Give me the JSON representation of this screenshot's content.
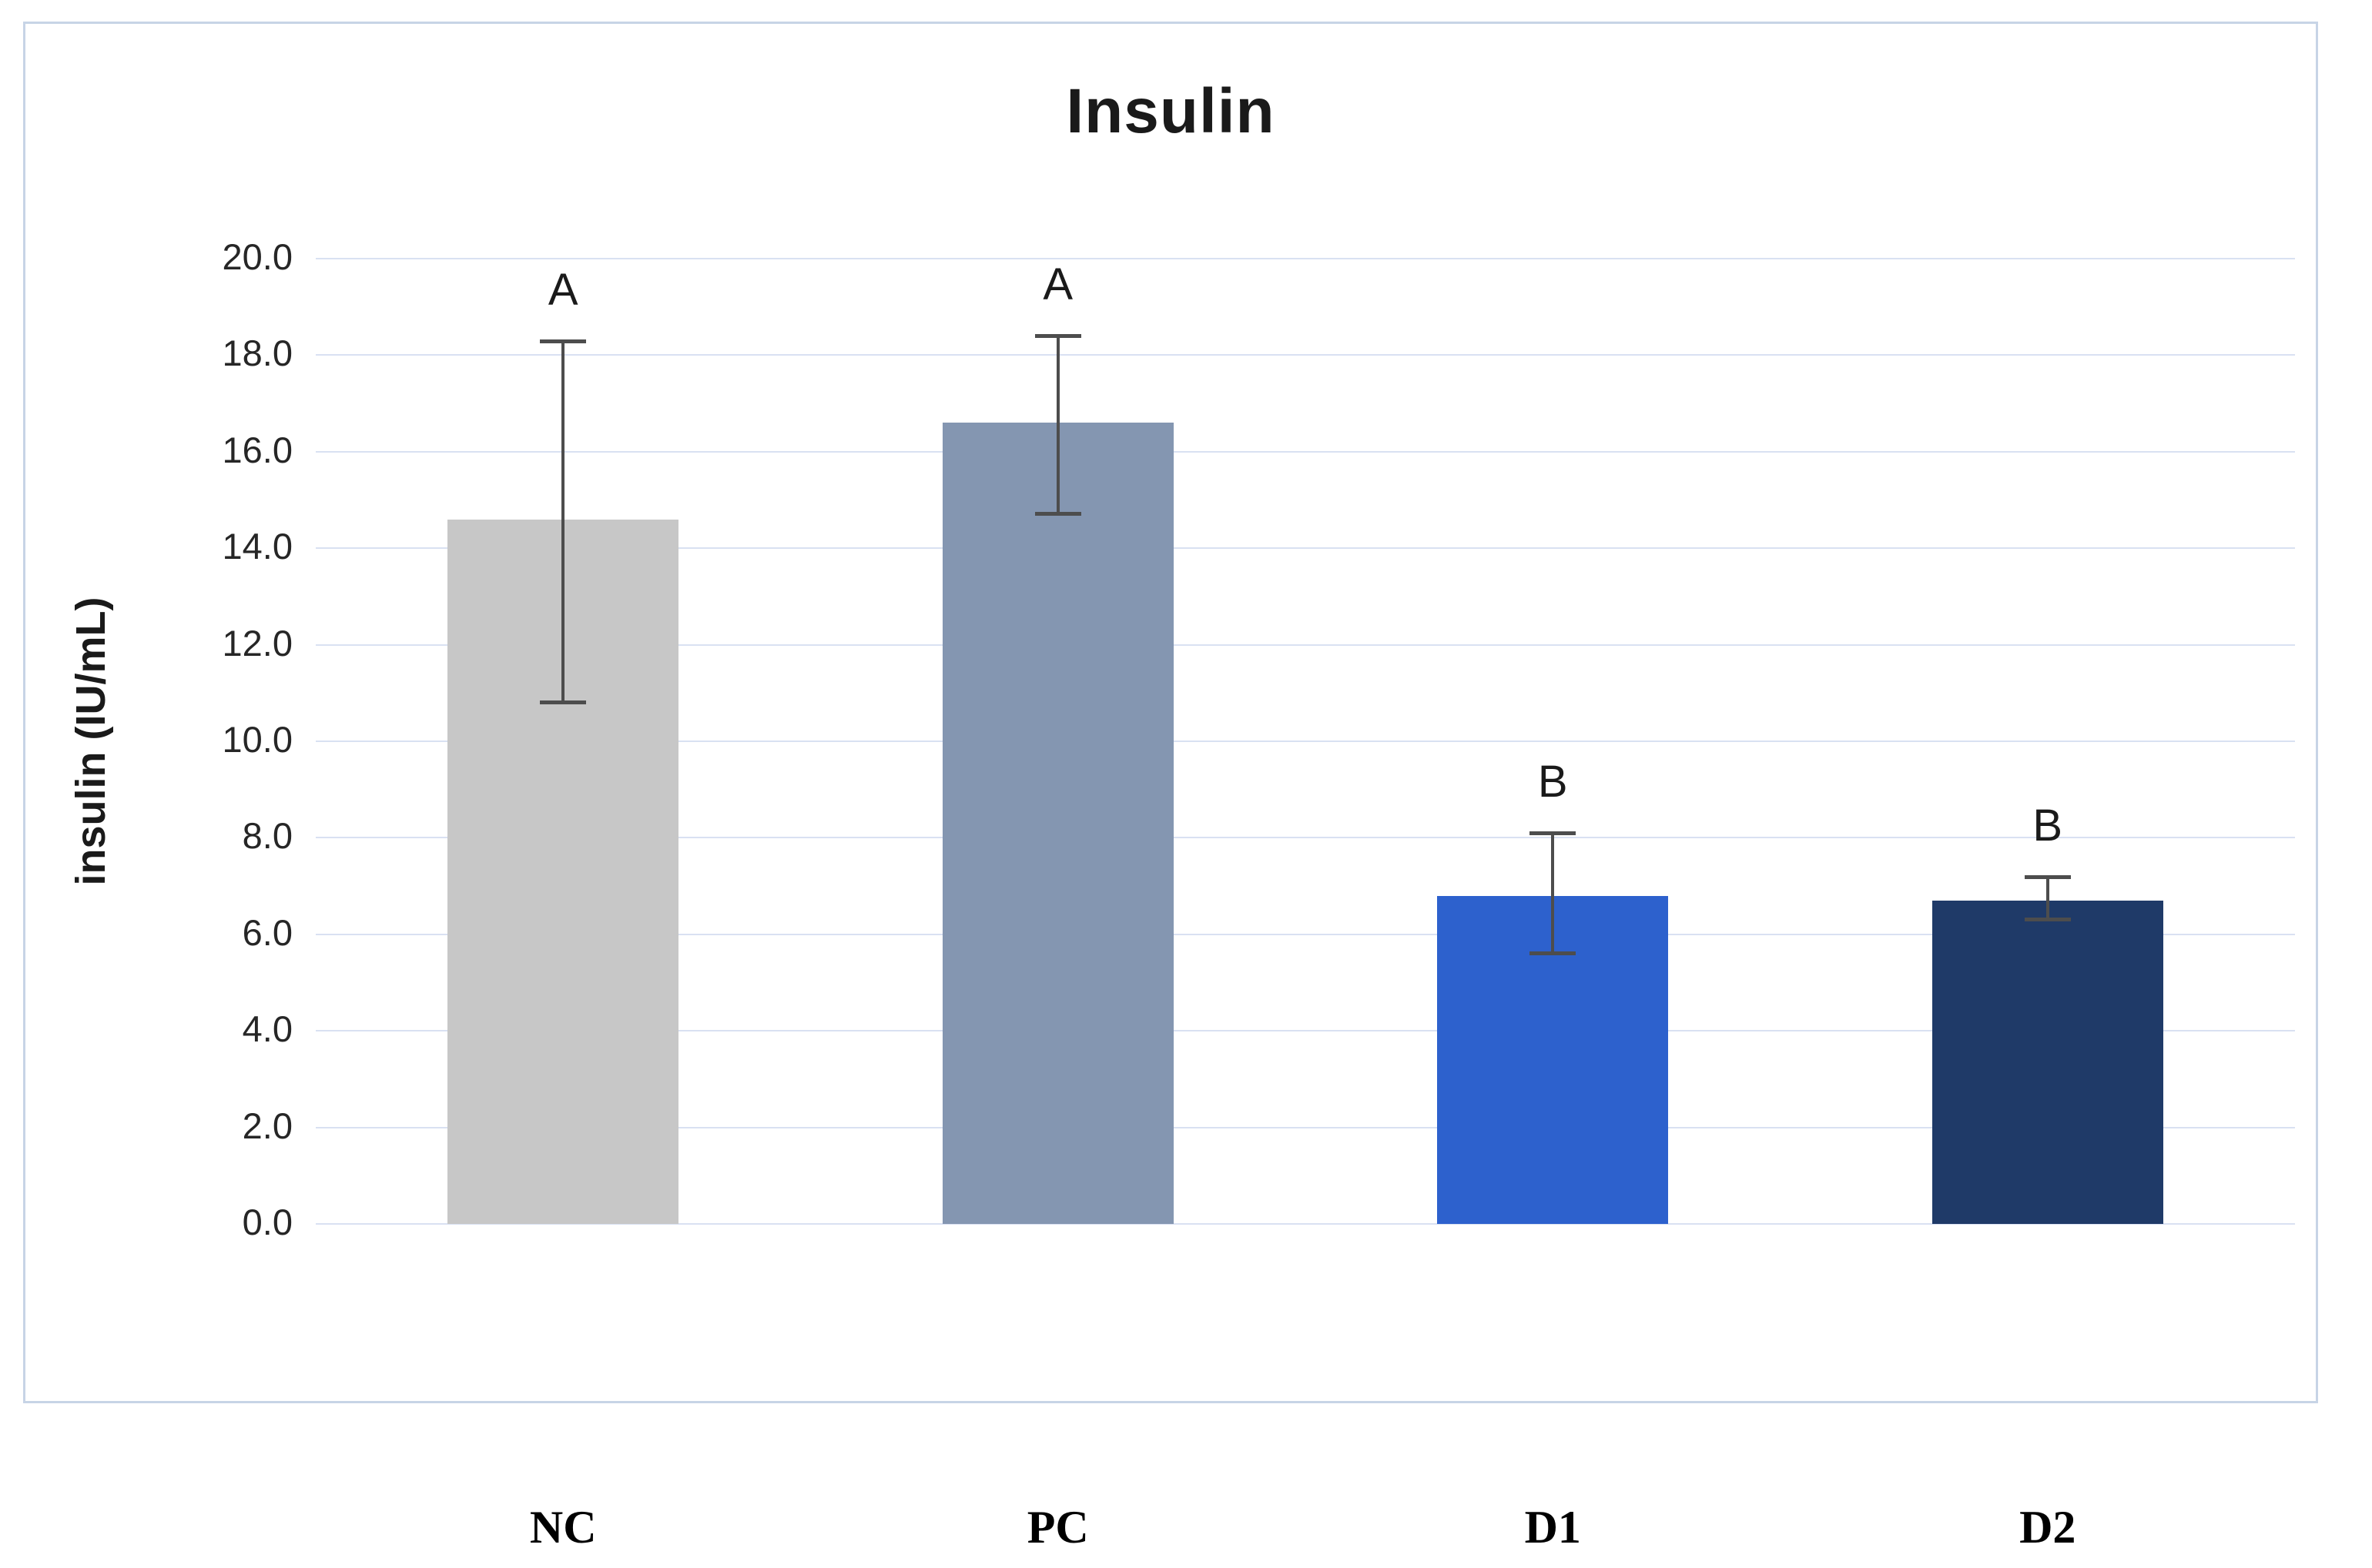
{
  "chart_data": {
    "type": "bar",
    "title": "Insulin",
    "xlabel": "",
    "ylabel": "insulin (IU/mL)",
    "ylim": [
      0,
      20
    ],
    "ytick_step": 2,
    "ytick_labels": [
      "0.0",
      "2.0",
      "4.0",
      "6.0",
      "8.0",
      "10.0",
      "12.0",
      "14.0",
      "16.0",
      "18.0",
      "20.0"
    ],
    "grid": true,
    "legend": false,
    "categories": [
      "NC",
      "PC",
      "D1",
      "D2"
    ],
    "values": [
      14.6,
      16.6,
      6.8,
      6.7
    ],
    "error_high": [
      18.3,
      18.4,
      8.1,
      7.2
    ],
    "error_low": [
      10.8,
      14.7,
      5.6,
      6.3
    ],
    "significance_letters": [
      "A",
      "A",
      "B",
      "B"
    ],
    "bar_colors": [
      "#c7c7c7",
      "#8496b1",
      "#2d61cd",
      "#1f3a68"
    ],
    "gridline_color": "#d9e1f2",
    "error_bar_color": "#4d4d4d",
    "frame_border_color": "#c7d4e6"
  }
}
